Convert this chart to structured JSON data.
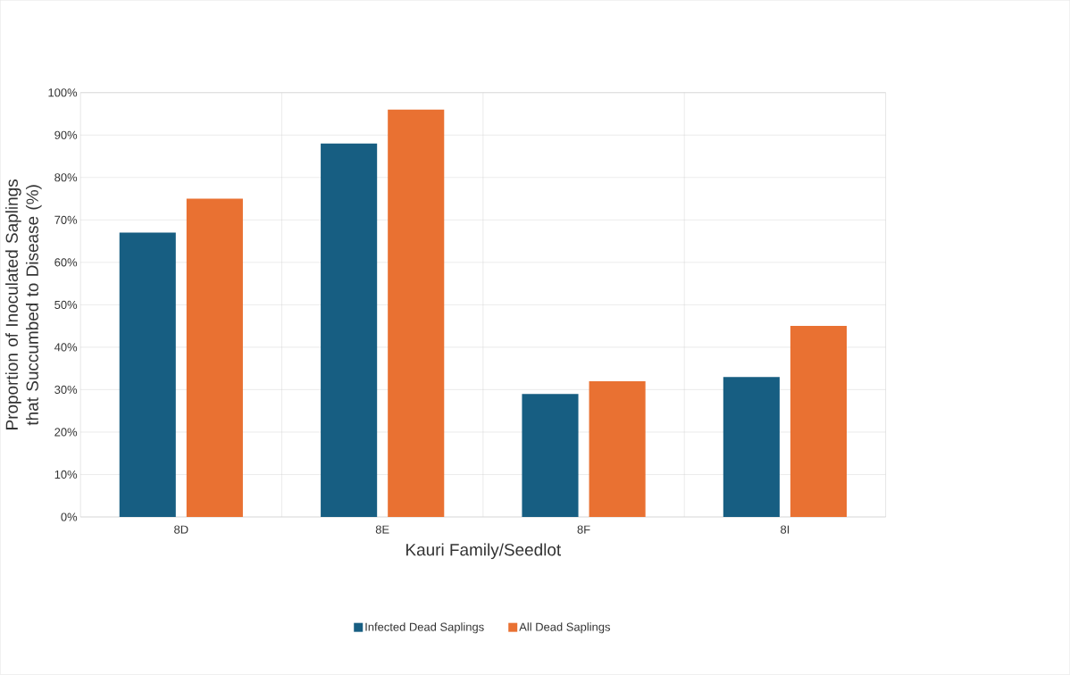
{
  "chart_data": {
    "type": "bar",
    "xlabel": "Kauri Family/Seedlot",
    "ylabel": "Proportion of Inoculated Saplings that Succumbed to Disease (%)",
    "categories": [
      "8D",
      "8E",
      "8F",
      "8I"
    ],
    "series": [
      {
        "name": "Infected Dead Saplings",
        "color": "#175e82",
        "values": [
          67,
          88,
          29,
          33
        ]
      },
      {
        "name": "All Dead Saplings",
        "color": "#e97132",
        "values": [
          75,
          96,
          32,
          45
        ]
      }
    ],
    "ylim": [
      0,
      100
    ],
    "yticks": [
      {
        "value": 0,
        "label": "0%"
      },
      {
        "value": 10,
        "label": "10%"
      },
      {
        "value": 20,
        "label": "20%"
      },
      {
        "value": 30,
        "label": "30%"
      },
      {
        "value": 40,
        "label": "40%"
      },
      {
        "value": 50,
        "label": "50%"
      },
      {
        "value": 60,
        "label": "60%"
      },
      {
        "value": 70,
        "label": "70%"
      },
      {
        "value": 80,
        "label": "80%"
      },
      {
        "value": 90,
        "label": "90%"
      },
      {
        "value": 100,
        "label": "100%"
      }
    ],
    "grid": true,
    "legend": "bottom"
  }
}
